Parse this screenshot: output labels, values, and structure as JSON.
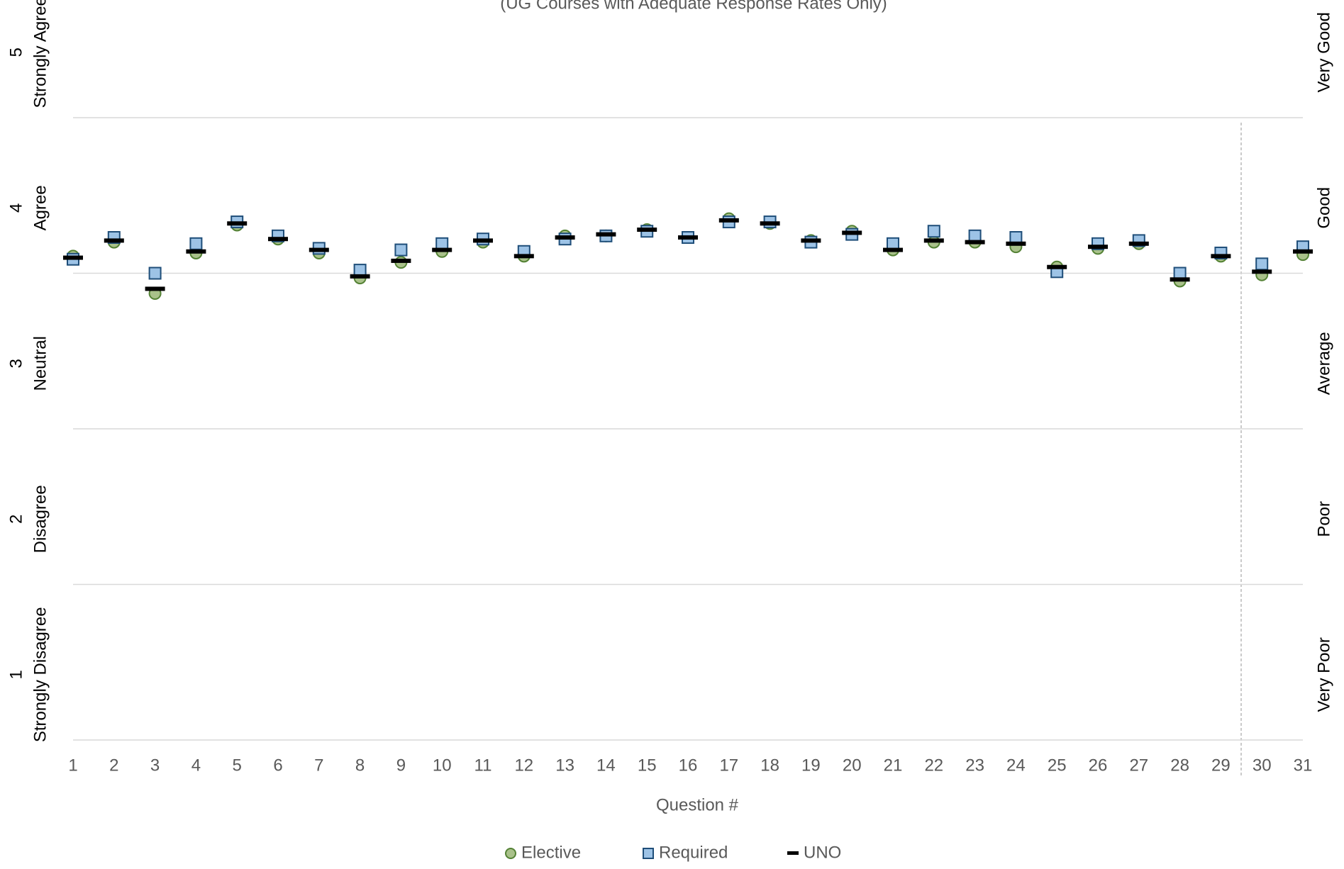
{
  "chart_data": {
    "type": "scatter",
    "subtitle": "(UG Courses with Adequate Response Rates Only)",
    "x_label": "Question #",
    "categories": [
      "1",
      "2",
      "3",
      "4",
      "5",
      "6",
      "7",
      "8",
      "9",
      "10",
      "11",
      "12",
      "13",
      "14",
      "15",
      "16",
      "17",
      "18",
      "19",
      "20",
      "21",
      "22",
      "23",
      "24",
      "25",
      "26",
      "27",
      "28",
      "29",
      "30",
      "31"
    ],
    "series": [
      {
        "name": "Elective",
        "color": "#a9c18a",
        "marker": "circle",
        "values": [
          4.11,
          4.2,
          3.87,
          4.13,
          4.31,
          4.22,
          4.13,
          3.97,
          4.07,
          4.14,
          4.2,
          4.11,
          4.24,
          4.24,
          4.28,
          4.23,
          4.35,
          4.32,
          4.21,
          4.27,
          4.15,
          4.2,
          4.2,
          4.17,
          4.04,
          4.16,
          4.19,
          3.95,
          4.11,
          3.99,
          4.12
        ]
      },
      {
        "name": "Required",
        "color": "#9dc3e6",
        "marker": "square",
        "values": [
          4.09,
          4.23,
          4.0,
          4.19,
          4.33,
          4.24,
          4.16,
          4.02,
          4.15,
          4.19,
          4.22,
          4.14,
          4.22,
          4.24,
          4.27,
          4.23,
          4.33,
          4.33,
          4.2,
          4.25,
          4.19,
          4.27,
          4.24,
          4.23,
          4.01,
          4.19,
          4.21,
          4.0,
          4.13,
          4.06,
          4.17
        ]
      },
      {
        "name": "UNO",
        "color": "#000000",
        "marker": "dash",
        "values": [
          4.1,
          4.21,
          3.9,
          4.14,
          4.32,
          4.22,
          4.15,
          3.98,
          4.08,
          4.15,
          4.21,
          4.11,
          4.23,
          4.25,
          4.28,
          4.23,
          4.34,
          4.32,
          4.21,
          4.26,
          4.15,
          4.21,
          4.2,
          4.19,
          4.04,
          4.17,
          4.19,
          3.96,
          4.11,
          4.01,
          4.14
        ]
      }
    ],
    "ylim": [
      1,
      5
    ],
    "yticks": [
      1,
      2,
      3,
      4,
      5
    ],
    "y_descriptions": [
      "Strongly Disagree",
      "Disagree",
      "Neutral",
      "Agree",
      "Strongly Agree"
    ],
    "y2_descriptions": [
      "Very Poor",
      "Poor",
      "Average",
      "Good",
      "Very Good"
    ],
    "grid": true
  }
}
